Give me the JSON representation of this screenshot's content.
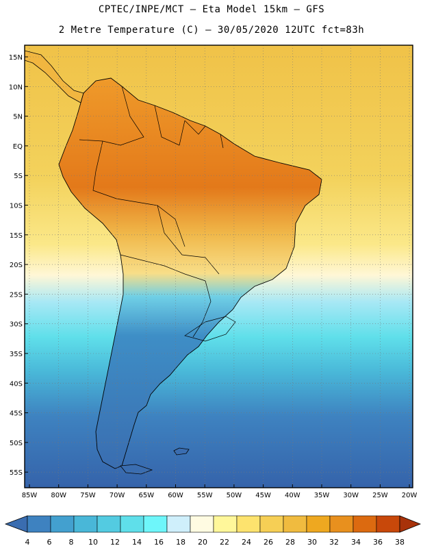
{
  "header": {
    "line1": "CPTEC/INPE/MCT –  Eta Model 15km – GFS",
    "line2": "2 Metre Temperature (C) – 30/05/2020 12UTC fct=83h"
  },
  "axes": {
    "lat_labels": [
      "15N",
      "10N",
      "5N",
      "EQ",
      "5S",
      "10S",
      "15S",
      "20S",
      "25S",
      "30S",
      "35S",
      "40S",
      "45S",
      "50S",
      "55S"
    ],
    "lon_labels": [
      "85W",
      "80W",
      "75W",
      "70W",
      "65W",
      "60W",
      "55W",
      "50W",
      "45W",
      "40W",
      "35W",
      "30W",
      "25W",
      "20W"
    ]
  },
  "colorbar": {
    "labels": [
      "4",
      "6",
      "8",
      "10",
      "12",
      "14",
      "16",
      "18",
      "20",
      "22",
      "24",
      "26",
      "28",
      "30",
      "32",
      "34",
      "36",
      "38"
    ],
    "colors": [
      "#3a6db0",
      "#3e82c0",
      "#43a0cf",
      "#49b7d8",
      "#53cbe1",
      "#5fdfea",
      "#6ef6fa",
      "#cfeffb",
      "#fffbe2",
      "#fff79a",
      "#fde36e",
      "#f6cf55",
      "#f0bb3f",
      "#eea820",
      "#e8901e",
      "#dc6a10",
      "#c8480a",
      "#a8320a"
    ]
  }
}
